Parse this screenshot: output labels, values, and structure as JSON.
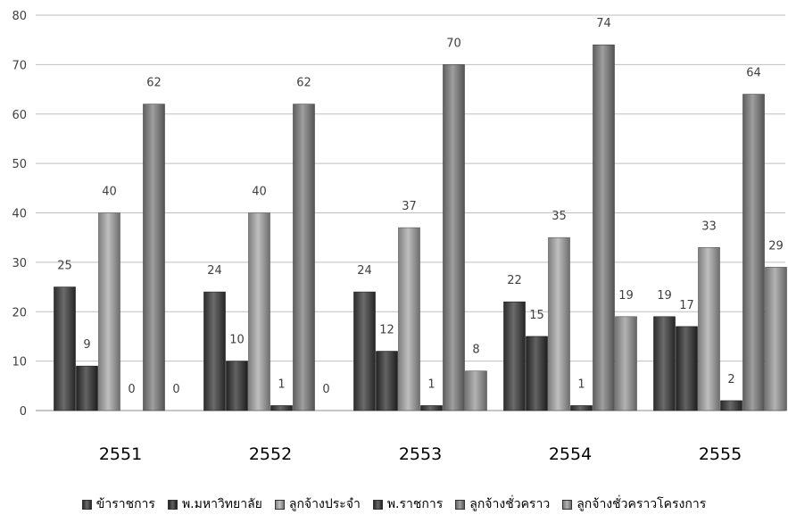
{
  "chart_data": {
    "type": "bar",
    "title": "",
    "xlabel": "",
    "ylabel": "",
    "ylim": [
      0,
      80
    ],
    "yticks": [
      0,
      10,
      20,
      30,
      40,
      50,
      60,
      70,
      80
    ],
    "grid": true,
    "legend_position": "bottom",
    "categories": [
      "2551",
      "2552",
      "2553",
      "2554",
      "2555"
    ],
    "series": [
      {
        "name": "ข้าราชการ",
        "color": "#3a3a3a",
        "values": [
          25,
          24,
          24,
          22,
          19
        ]
      },
      {
        "name": "พ.มหาวิทยาลัย",
        "color": "#2e2e2e",
        "values": [
          9,
          10,
          12,
          15,
          17
        ]
      },
      {
        "name": "ลูกจ้างประจำ",
        "color": "#a9a9a9",
        "values": [
          40,
          40,
          37,
          35,
          33
        ]
      },
      {
        "name": "พ.ราชการ",
        "color": "#353535",
        "values": [
          0,
          1,
          1,
          1,
          2
        ]
      },
      {
        "name": "ลูกจ้างชั่วคราว",
        "color": "#7f7f7f",
        "values": [
          62,
          62,
          70,
          74,
          64
        ]
      },
      {
        "name": "ลูกจ้างชั่วคราวโครงการ",
        "color": "#9a9a9a",
        "values": [
          0,
          0,
          8,
          19,
          29
        ]
      }
    ]
  }
}
